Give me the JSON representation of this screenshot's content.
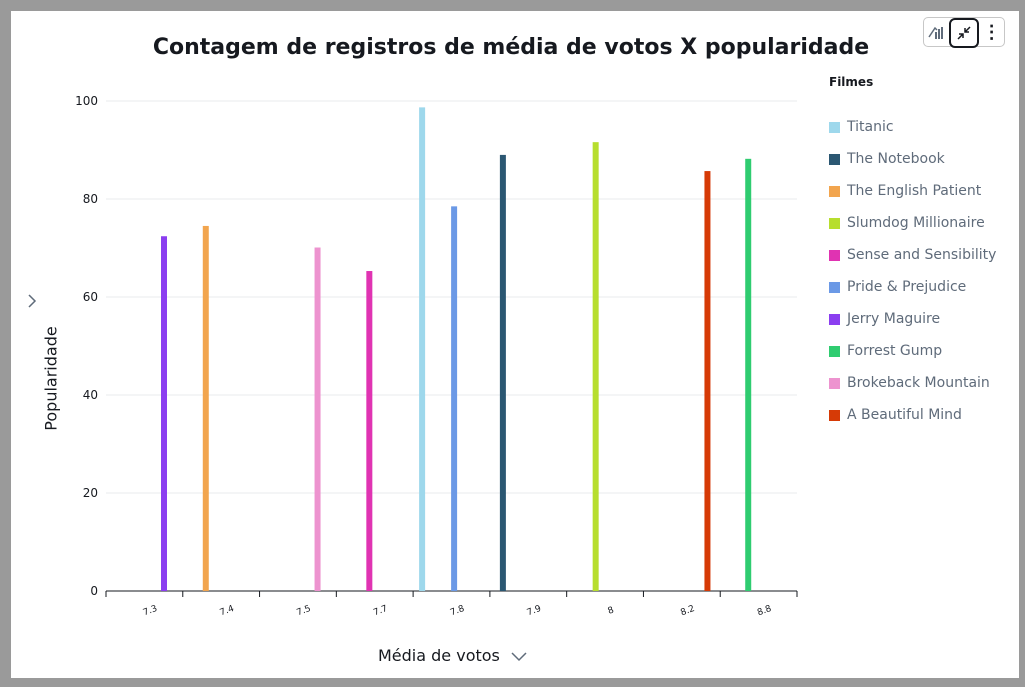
{
  "toolbar": {
    "icons": [
      "chart-type-icon",
      "collapse-icon",
      "more-options-icon"
    ],
    "more_label": "⋮"
  },
  "chart_data": {
    "type": "bar",
    "title": "Contagem de registros de média de votos X popularidade",
    "xlabel": "Média de votos",
    "ylabel": "Popularidade",
    "ylim": [
      0,
      100
    ],
    "yticks": [
      0,
      20,
      40,
      60,
      80,
      100
    ],
    "grid": true,
    "legend_title": "Filmes",
    "legend_position": "right",
    "categories": [
      "7.3",
      "7.4",
      "7.5",
      "7.7",
      "7.8",
      "7.9",
      "8",
      "8.2",
      "8.8"
    ],
    "series": [
      {
        "name": "Titanic",
        "color": "#9ed8ec",
        "category": "7.8",
        "value": 98.7
      },
      {
        "name": "The Notebook",
        "color": "#2b5772",
        "category": "7.9",
        "value": 89
      },
      {
        "name": "The English Patient",
        "color": "#f2a54e",
        "category": "7.4",
        "value": 74.5
      },
      {
        "name": "Slumdog Millionaire",
        "color": "#b7de2e",
        "category": "8",
        "value": 91.6
      },
      {
        "name": "Sense and Sensibility",
        "color": "#e033b2",
        "category": "7.7",
        "value": 65.3
      },
      {
        "name": "Pride & Prejudice",
        "color": "#6b99e6",
        "category": "7.8",
        "value": 78.5
      },
      {
        "name": "Jerry Maguire",
        "color": "#8b3ef0",
        "category": "7.3",
        "value": 72.4
      },
      {
        "name": "Forrest Gump",
        "color": "#2fcc70",
        "category": "8.8",
        "value": 88.2
      },
      {
        "name": "Brokeback Mountain",
        "color": "#ed93cf",
        "category": "7.5",
        "value": 70.1
      },
      {
        "name": "A Beautiful Mind",
        "color": "#d63a06",
        "category": "8.2",
        "value": 85.7
      }
    ]
  }
}
